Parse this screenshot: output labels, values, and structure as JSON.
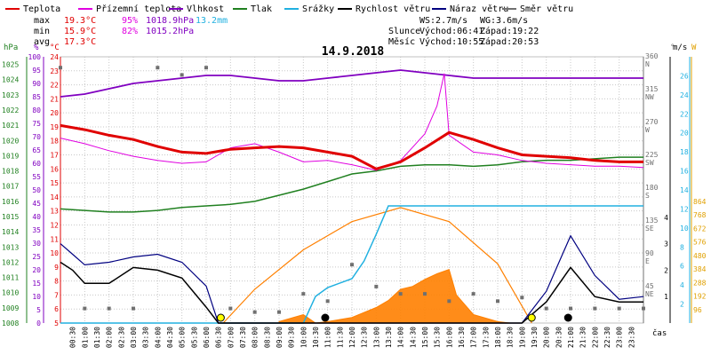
{
  "chart_data": {
    "type": "line",
    "title": "14.9.2018",
    "legend": [
      {
        "label": "Teplota",
        "color": "#e00000"
      },
      {
        "label": "Přízemní teplota",
        "color": "#e000e0"
      },
      {
        "label": "Vlhkost",
        "color": "#8000c0"
      },
      {
        "label": "Tlak",
        "color": "#208020"
      },
      {
        "label": "Srážky",
        "color": "#20b0e0"
      },
      {
        "label": "Rychlost větru",
        "color": "#000000"
      },
      {
        "label": "Náraz větru",
        "color": "#000080"
      },
      {
        "label": "Směr větru",
        "color": "#707070"
      }
    ],
    "stats": {
      "max": {
        "label": "max",
        "temp": "19.3°C",
        "hum": "95%",
        "press": "1018.9hPa",
        "rain": "13.2mm"
      },
      "min": {
        "label": "min",
        "temp": "15.9°C",
        "hum": "82%",
        "press": "1015.2hPa"
      },
      "avg": {
        "label": "avg",
        "temp": "17.3°C"
      }
    },
    "wind_info": {
      "ws": "WS:2.7m/s",
      "wg": "WG:3.6m/s"
    },
    "sun": {
      "label": "Slunce",
      "rise": "Východ:06:41",
      "set": "Západ:19:22"
    },
    "moon": {
      "label": "Měsíc",
      "rise": "Východ:10:55",
      "set": "Západ:20:53"
    },
    "axis_units": {
      "pressure": "hPa",
      "humidity": "%",
      "temperature": "°C",
      "direction": "°",
      "speed": "m/s",
      "rain": "mm",
      "solar": "W",
      "time": "čas"
    },
    "pressure_ticks": [
      1008,
      1009,
      1010,
      1011,
      1012,
      1013,
      1014,
      1015,
      1016,
      1017,
      1018,
      1019,
      1020,
      1021,
      1022,
      1023,
      1024,
      1025
    ],
    "humidity_ticks": [
      0,
      5,
      10,
      15,
      20,
      25,
      30,
      35,
      40,
      45,
      50,
      55,
      60,
      65,
      70,
      75,
      80,
      85,
      90,
      95,
      100
    ],
    "temperature_ticks": [
      5,
      6,
      7,
      8,
      9,
      10,
      11,
      12,
      13,
      14,
      15,
      16,
      17,
      18,
      19,
      20,
      21,
      22,
      23,
      24
    ],
    "direction_ticks": [
      {
        "deg": "45",
        "dir": "NE"
      },
      {
        "deg": "90",
        "dir": "E"
      },
      {
        "deg": "135",
        "dir": "SE"
      },
      {
        "deg": "180",
        "dir": "S"
      },
      {
        "deg": "225",
        "dir": "SW"
      },
      {
        "deg": "270",
        "dir": "W"
      },
      {
        "deg": "315",
        "dir": "NW"
      },
      {
        "deg": "360",
        "dir": "N"
      }
    ],
    "speed_ticks": [
      1,
      2,
      3,
      4
    ],
    "rain_ticks": [
      2,
      4,
      6,
      8,
      10,
      12,
      14,
      16,
      18,
      20,
      22,
      24,
      26
    ],
    "solar_ticks": [
      96,
      192,
      288,
      384,
      480,
      576,
      672,
      768,
      864
    ],
    "x_ticks": [
      "00:30",
      "01:00",
      "01:30",
      "02:00",
      "02:30",
      "03:00",
      "03:30",
      "04:00",
      "04:30",
      "05:00",
      "05:30",
      "06:00",
      "06:30",
      "07:00",
      "07:30",
      "08:00",
      "08:30",
      "09:00",
      "09:30",
      "10:00",
      "10:30",
      "11:00",
      "11:30",
      "12:00",
      "12:30",
      "13:00",
      "13:30",
      "14:00",
      "14:30",
      "15:00",
      "15:30",
      "16:00",
      "16:30",
      "17:00",
      "17:30",
      "18:00",
      "18:30",
      "19:00",
      "19:30",
      "20:00",
      "20:30",
      "21:00",
      "21:30",
      "22:00",
      "22:30",
      "23:00",
      "23:30"
    ],
    "xlim_hours": [
      0,
      24
    ],
    "series": {
      "temperature": {
        "unit": "°C",
        "points": [
          [
            0,
            19.1
          ],
          [
            1,
            18.8
          ],
          [
            2,
            18.4
          ],
          [
            3,
            18.1
          ],
          [
            4,
            17.6
          ],
          [
            5,
            17.2
          ],
          [
            6,
            17.1
          ],
          [
            7,
            17.4
          ],
          [
            8,
            17.5
          ],
          [
            9,
            17.6
          ],
          [
            10,
            17.5
          ],
          [
            11,
            17.2
          ],
          [
            12,
            16.9
          ],
          [
            13,
            16.0
          ],
          [
            14,
            16.5
          ],
          [
            15,
            17.5
          ],
          [
            16,
            18.6
          ],
          [
            17,
            18.1
          ],
          [
            18,
            17.5
          ],
          [
            19,
            17.0
          ],
          [
            20,
            16.9
          ],
          [
            21,
            16.8
          ],
          [
            22,
            16.6
          ],
          [
            23,
            16.5
          ],
          [
            24,
            16.5
          ]
        ]
      },
      "ground_temperature": {
        "unit": "°C",
        "points": [
          [
            0,
            18.2
          ],
          [
            1,
            17.8
          ],
          [
            2,
            17.3
          ],
          [
            3,
            16.9
          ],
          [
            4,
            16.6
          ],
          [
            5,
            16.4
          ],
          [
            6,
            16.5
          ],
          [
            7,
            17.5
          ],
          [
            8,
            17.8
          ],
          [
            9,
            17.2
          ],
          [
            10,
            16.5
          ],
          [
            11,
            16.6
          ],
          [
            12,
            16.3
          ],
          [
            13,
            15.9
          ],
          [
            14,
            16.6
          ],
          [
            15,
            18.5
          ],
          [
            15.5,
            20.5
          ],
          [
            15.8,
            22.8
          ],
          [
            16,
            18.4
          ],
          [
            17,
            17.2
          ],
          [
            18,
            17.0
          ],
          [
            19,
            16.6
          ],
          [
            20,
            16.4
          ],
          [
            21,
            16.3
          ],
          [
            22,
            16.2
          ],
          [
            23,
            16.2
          ],
          [
            24,
            16.1
          ]
        ]
      },
      "humidity": {
        "unit": "%",
        "points": [
          [
            0,
            85
          ],
          [
            1,
            86
          ],
          [
            2,
            88
          ],
          [
            3,
            90
          ],
          [
            4,
            91
          ],
          [
            5,
            92
          ],
          [
            6,
            93
          ],
          [
            7,
            93
          ],
          [
            8,
            92
          ],
          [
            9,
            91
          ],
          [
            10,
            91
          ],
          [
            11,
            92
          ],
          [
            12,
            93
          ],
          [
            13,
            94
          ],
          [
            14,
            95
          ],
          [
            15,
            94
          ],
          [
            16,
            93
          ],
          [
            17,
            92
          ],
          [
            18,
            92
          ],
          [
            19,
            92
          ],
          [
            20,
            92
          ],
          [
            21,
            92
          ],
          [
            22,
            92
          ],
          [
            23,
            92
          ],
          [
            24,
            92
          ]
        ]
      },
      "pressure": {
        "unit": "hPa",
        "points": [
          [
            0,
            1015.5
          ],
          [
            1,
            1015.4
          ],
          [
            2,
            1015.3
          ],
          [
            3,
            1015.3
          ],
          [
            4,
            1015.4
          ],
          [
            5,
            1015.6
          ],
          [
            6,
            1015.7
          ],
          [
            7,
            1015.8
          ],
          [
            8,
            1016.0
          ],
          [
            9,
            1016.4
          ],
          [
            10,
            1016.8
          ],
          [
            11,
            1017.3
          ],
          [
            12,
            1017.8
          ],
          [
            13,
            1018.0
          ],
          [
            14,
            1018.3
          ],
          [
            15,
            1018.4
          ],
          [
            16,
            1018.4
          ],
          [
            17,
            1018.3
          ],
          [
            18,
            1018.4
          ],
          [
            19,
            1018.6
          ],
          [
            20,
            1018.7
          ],
          [
            21,
            1018.7
          ],
          [
            22,
            1018.8
          ],
          [
            23,
            1018.9
          ],
          [
            24,
            1018.9
          ]
        ]
      },
      "rain_total": {
        "unit": "mm",
        "points": [
          [
            0,
            0
          ],
          [
            10,
            0
          ],
          [
            10.5,
            3
          ],
          [
            11,
            4
          ],
          [
            12,
            5
          ],
          [
            12.5,
            7
          ],
          [
            13,
            10
          ],
          [
            13.5,
            13.2
          ],
          [
            24,
            13.2
          ]
        ]
      },
      "wind_speed": {
        "unit": "m/s",
        "points": [
          [
            0,
            2.3
          ],
          [
            0.5,
            2.0
          ],
          [
            1,
            1.5
          ],
          [
            2,
            1.5
          ],
          [
            3,
            2.1
          ],
          [
            4,
            2.0
          ],
          [
            5,
            1.7
          ],
          [
            6,
            0.6
          ],
          [
            6.5,
            0
          ],
          [
            19,
            0
          ],
          [
            20,
            0.8
          ],
          [
            21,
            2.1
          ],
          [
            22,
            1.0
          ],
          [
            23,
            0.8
          ],
          [
            24,
            0.8
          ]
        ]
      },
      "wind_gust": {
        "unit": "m/s",
        "points": [
          [
            0,
            3.0
          ],
          [
            0.5,
            2.6
          ],
          [
            1,
            2.2
          ],
          [
            2,
            2.3
          ],
          [
            3,
            2.5
          ],
          [
            4,
            2.6
          ],
          [
            5,
            2.3
          ],
          [
            6,
            1.4
          ],
          [
            6.5,
            0
          ],
          [
            19,
            0
          ],
          [
            20,
            1.2
          ],
          [
            21,
            3.3
          ],
          [
            22,
            1.8
          ],
          [
            23,
            0.9
          ],
          [
            24,
            1.0
          ]
        ]
      },
      "wind_direction": {
        "unit": "°",
        "points": [
          [
            0,
            350
          ],
          [
            1,
            20
          ],
          [
            2,
            20
          ],
          [
            3,
            20
          ],
          [
            4,
            350
          ],
          [
            5,
            340
          ],
          [
            6,
            350
          ],
          [
            7,
            20
          ],
          [
            8,
            15
          ],
          [
            9,
            15
          ],
          [
            10,
            40
          ],
          [
            11,
            30
          ],
          [
            12,
            80
          ],
          [
            13,
            50
          ],
          [
            14,
            40
          ],
          [
            15,
            40
          ],
          [
            16,
            30
          ],
          [
            17,
            40
          ],
          [
            18,
            30
          ],
          [
            19,
            35
          ],
          [
            20,
            20
          ],
          [
            21,
            20
          ],
          [
            22,
            20
          ],
          [
            23,
            20
          ],
          [
            24,
            20
          ]
        ]
      },
      "solar_radiation": {
        "unit": "W/m²",
        "points": [
          [
            6.7,
            0
          ],
          [
            8,
            240
          ],
          [
            10,
            520
          ],
          [
            12,
            720
          ],
          [
            14,
            820
          ],
          [
            16,
            720
          ],
          [
            18,
            420
          ],
          [
            19.4,
            0
          ]
        ]
      },
      "solar_measured": {
        "unit": "W/m²",
        "points": [
          [
            9,
            10
          ],
          [
            10,
            60
          ],
          [
            10.5,
            0
          ],
          [
            11,
            10
          ],
          [
            12,
            40
          ],
          [
            13,
            110
          ],
          [
            13.5,
            160
          ],
          [
            14,
            240
          ],
          [
            14.5,
            260
          ],
          [
            15,
            310
          ],
          [
            15.5,
            350
          ],
          [
            16,
            380
          ],
          [
            16.3,
            200
          ],
          [
            17,
            60
          ],
          [
            18,
            10
          ],
          [
            18.5,
            0
          ]
        ]
      }
    },
    "markers": [
      {
        "type": "sunrise",
        "time": 6.6
      },
      {
        "type": "sunset",
        "time": 19.4
      },
      {
        "type": "moonrise",
        "time": 10.9
      },
      {
        "type": "moonset",
        "time": 20.9
      }
    ]
  },
  "colors": {
    "temp": "#e00000",
    "ground": "#e000e0",
    "hum": "#8000c0",
    "press": "#208020",
    "rain": "#20b0e0",
    "speed": "#000000",
    "gust": "#000080",
    "dir": "#707070",
    "solar_calc": "#ff8000",
    "solar": "#ff8000",
    "grid": "#c8c8c8"
  }
}
